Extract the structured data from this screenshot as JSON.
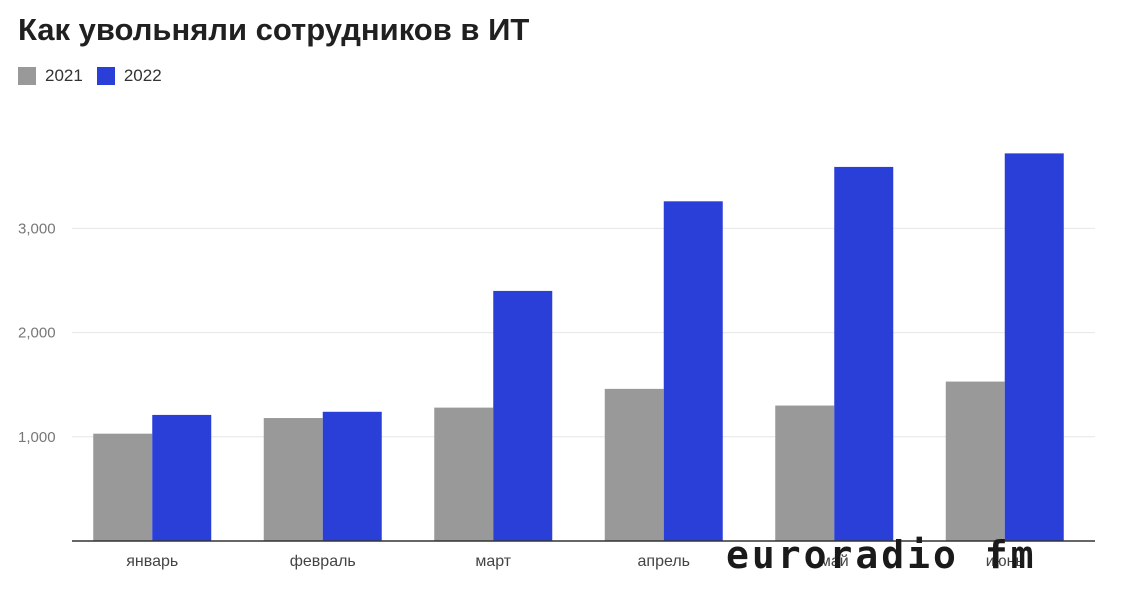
{
  "chart_data": {
    "type": "bar",
    "title": "Как увольняли сотрудников в ИТ",
    "categories": [
      "январь",
      "февраль",
      "март",
      "апрель",
      "май",
      "июнь"
    ],
    "series": [
      {
        "name": "2021",
        "color": "#999999",
        "values": [
          1030,
          1180,
          1280,
          1460,
          1300,
          1530
        ]
      },
      {
        "name": "2022",
        "color": "#2a3ed8",
        "values": [
          1210,
          1240,
          2400,
          3260,
          3590,
          3720
        ]
      }
    ],
    "y_ticks": [
      1000,
      2000,
      3000
    ],
    "y_tick_labels": [
      "1,000",
      "2,000",
      "3,000"
    ],
    "ylim": [
      0,
      3900
    ],
    "grid": true,
    "legend_position": "top-left"
  },
  "watermark": "euroradio fm"
}
